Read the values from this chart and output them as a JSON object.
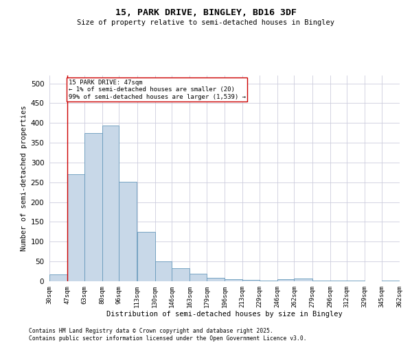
{
  "title1": "15, PARK DRIVE, BINGLEY, BD16 3DF",
  "title2": "Size of property relative to semi-detached houses in Bingley",
  "xlabel": "Distribution of semi-detached houses by size in Bingley",
  "ylabel": "Number of semi-detached properties",
  "footer1": "Contains HM Land Registry data © Crown copyright and database right 2025.",
  "footer2": "Contains public sector information licensed under the Open Government Licence v3.0.",
  "annotation_line1": "15 PARK DRIVE: 47sqm",
  "annotation_line2": "← 1% of semi-detached houses are smaller (20)",
  "annotation_line3": "99% of semi-detached houses are larger (1,539) →",
  "property_value": 47,
  "bar_color": "#c8d8e8",
  "bar_edge_color": "#6699bb",
  "annotation_box_color": "#cc0000",
  "grid_color": "#ccccdd",
  "bins": [
    30,
    47,
    63,
    80,
    96,
    113,
    130,
    146,
    163,
    179,
    196,
    213,
    229,
    246,
    262,
    279,
    296,
    312,
    329,
    345,
    362
  ],
  "heights": [
    18,
    270,
    375,
    393,
    252,
    125,
    50,
    33,
    19,
    8,
    5,
    3,
    1,
    5,
    7,
    1,
    1,
    1,
    0,
    2
  ],
  "ylim": [
    0,
    520
  ],
  "yticks": [
    0,
    50,
    100,
    150,
    200,
    250,
    300,
    350,
    400,
    450,
    500
  ]
}
